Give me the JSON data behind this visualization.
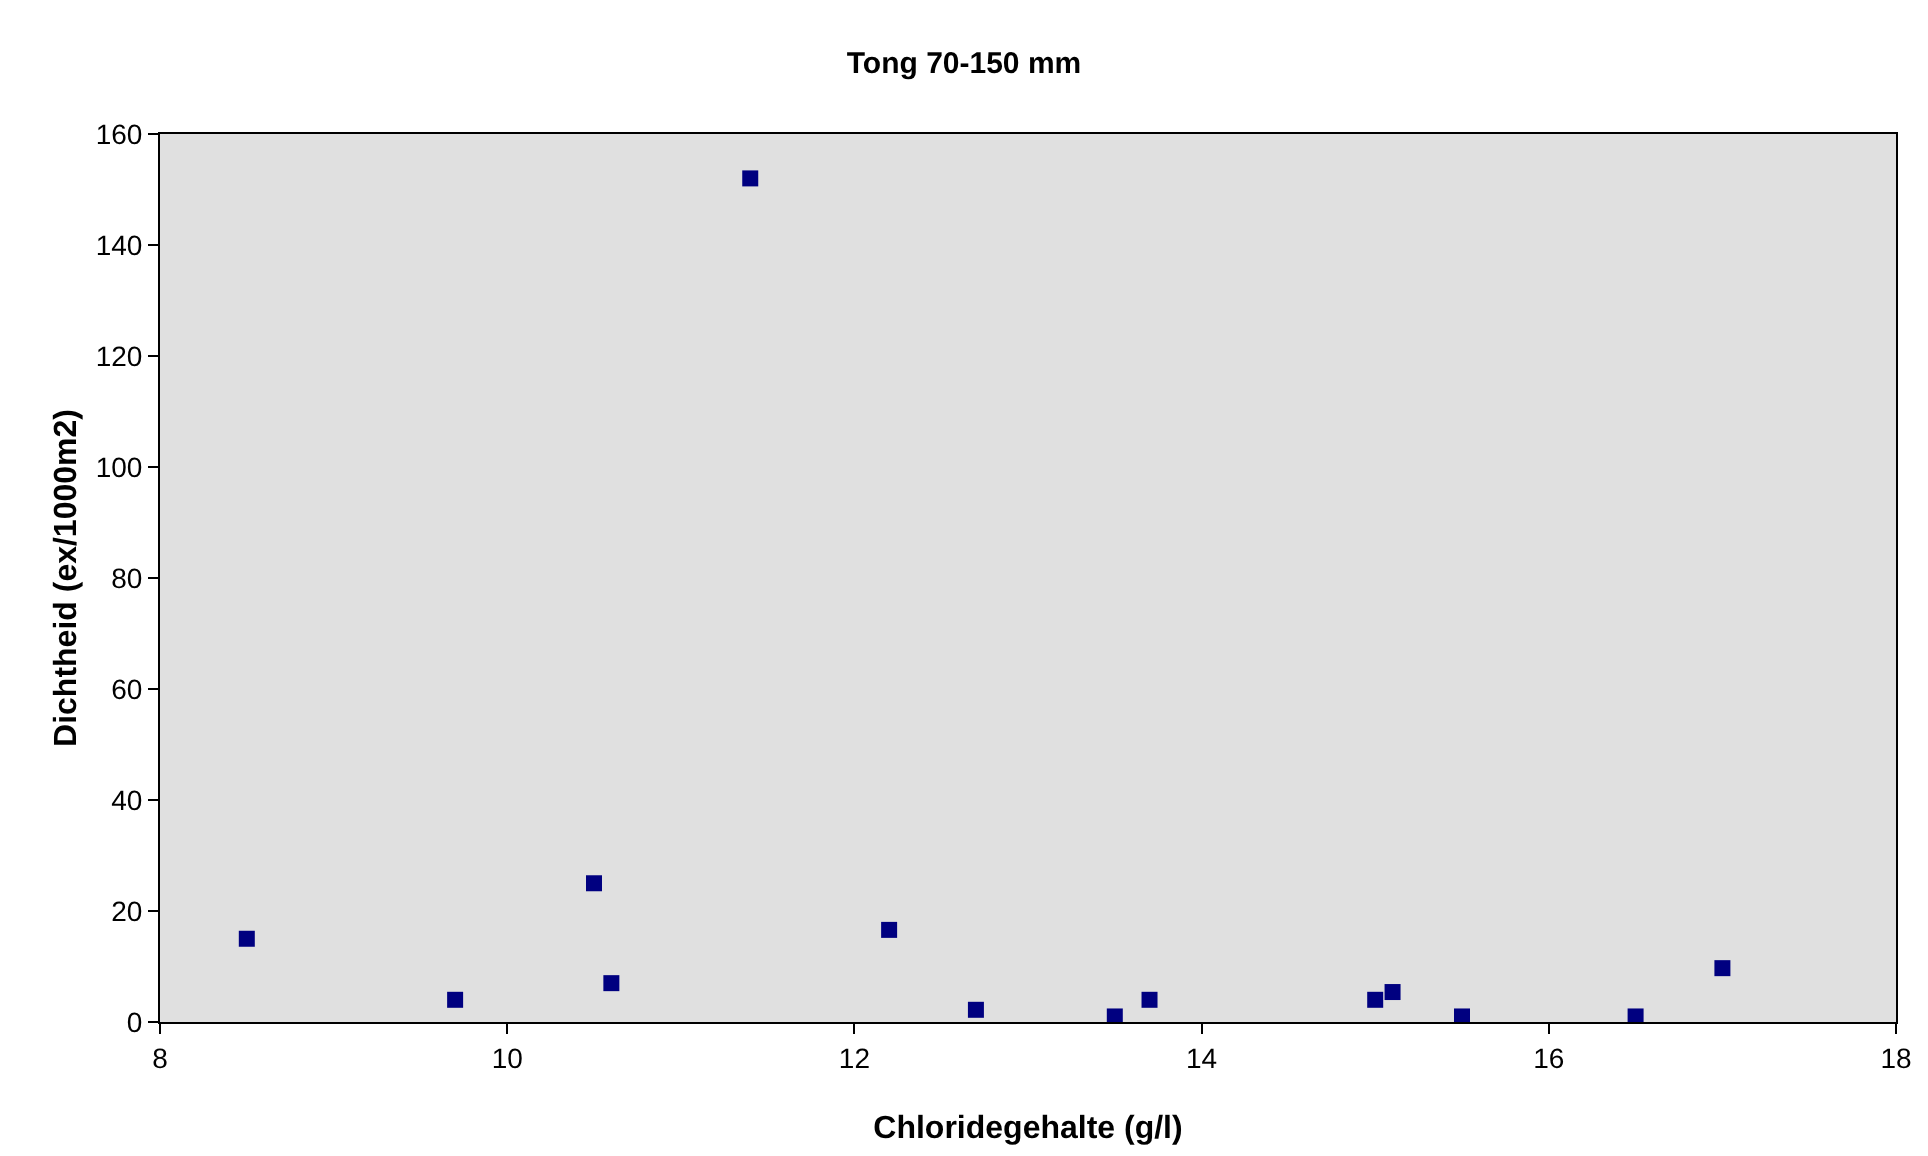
{
  "chart_data": {
    "type": "scatter",
    "title": "Tong 70-150 mm",
    "xlabel": "Chloridegehalte (g/l)",
    "ylabel": "Dichtheid (ex/1000m2)",
    "x": [
      8.5,
      9.7,
      10.5,
      10.6,
      11.4,
      12.2,
      12.7,
      13.5,
      13.7,
      15.0,
      15.1,
      15.5,
      16.5,
      17.0
    ],
    "values": [
      15,
      4,
      25,
      7,
      152,
      16.6,
      2.2,
      1,
      4,
      4,
      5.4,
      1,
      1,
      9.7
    ],
    "color": "#000080",
    "marker": "square",
    "xlim": [
      8,
      18
    ],
    "xticks": [
      8,
      10,
      12,
      14,
      16,
      18
    ],
    "ylim": [
      0,
      160
    ],
    "yticks": [
      0,
      20,
      40,
      60,
      80,
      100,
      120,
      140,
      160
    ],
    "grid": false,
    "legend": false
  }
}
